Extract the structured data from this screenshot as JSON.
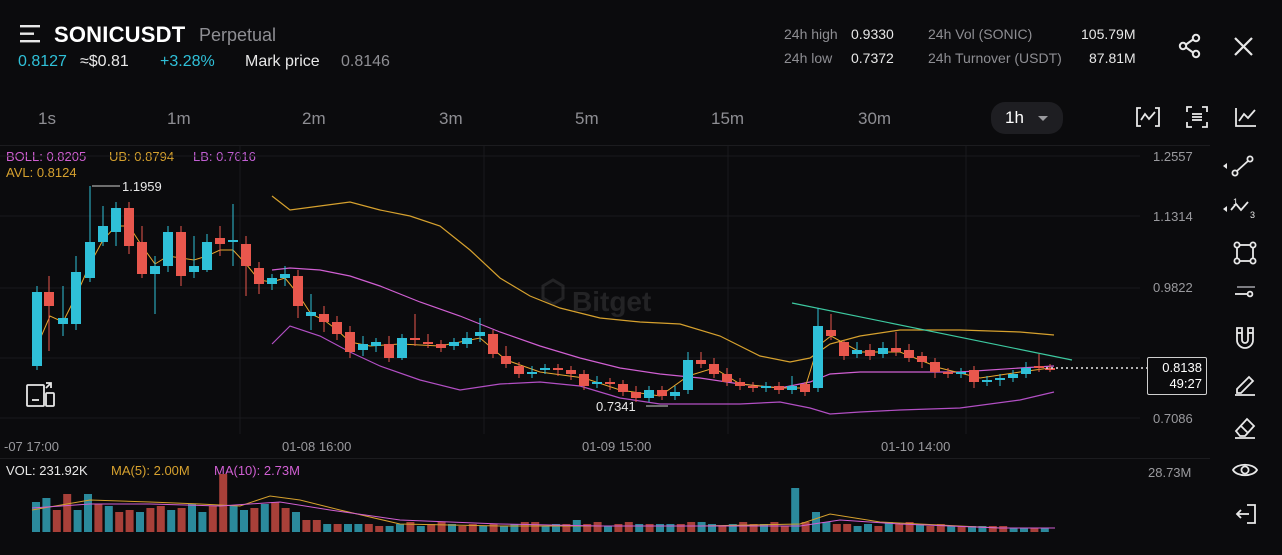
{
  "header": {
    "symbol": "SONICUSDT",
    "contract_type": "Perpetual",
    "last_price": "0.8127",
    "usd_price": "≈$0.81",
    "change_pct": "+3.28%",
    "mark_price_label": "Mark price",
    "mark_price": "0.8146",
    "stats": {
      "high_label": "24h high",
      "high": "0.9330",
      "low_label": "24h low",
      "low": "0.7372",
      "vol_label": "24h Vol (SONIC)",
      "vol": "105.79M",
      "turnover_label": "24h Turnover (USDT)",
      "turnover": "87.81M"
    }
  },
  "timeframes": [
    "1s",
    "1m",
    "2m",
    "3m",
    "5m",
    "15m",
    "30m"
  ],
  "active_timeframe": "1h",
  "indicators": {
    "boll_label": "BOLL: 0.8205",
    "ub_label": "UB: 0.8794",
    "lb_label": "LB: 0.7616",
    "avl_label": "AVL: 0.8124"
  },
  "price_axis": [
    "1.2557",
    "1.1314",
    "0.9822",
    "0.7086"
  ],
  "x_axis": [
    "-07 17:00",
    "01-08 16:00",
    "01-09 15:00",
    "01-10 14:00"
  ],
  "annotations": {
    "high_marker": "1.1959",
    "low_marker": "0.7341",
    "current_price": "0.8138",
    "countdown": "49:27"
  },
  "watermark": "Bitget",
  "volume": {
    "vol_label": "VOL: 231.92K",
    "ma5_label": "MA(5): 2.00M",
    "ma10_label": "MA(10): 2.73M",
    "axis_max": "28.73M"
  },
  "colors": {
    "up": "#2fc0d8",
    "down": "#e8574d",
    "boll_mid": "#d05fd2",
    "ub": "#d6a12e",
    "avl": "#d6a12e",
    "trendline": "#3dc9a0"
  },
  "toolbar_icons": [
    "line-tool-icon",
    "fib-tool-icon",
    "rectangle-tool-icon",
    "horizontal-line-icon",
    "magnet-icon",
    "pencil-icon",
    "eraser-icon",
    "eye-icon",
    "exit-icon"
  ]
}
